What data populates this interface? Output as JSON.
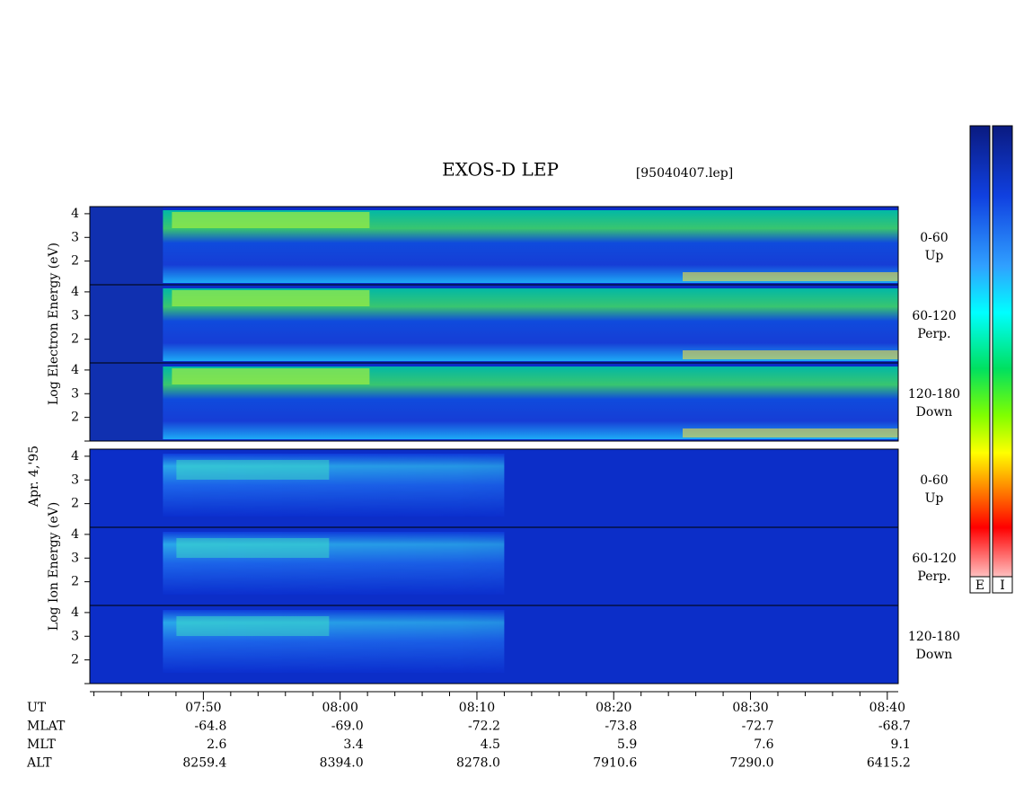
{
  "chart_data": {
    "type": "spectrogram",
    "title": "EXOS-D LEP",
    "file": "[95040407.lep]",
    "date_label": "Apr. 4,'95",
    "xlim": [
      "07:41:42",
      "08:40:48"
    ],
    "xticks": [
      "07:50",
      "08:00",
      "08:10",
      "08:20",
      "08:30",
      "08:40"
    ],
    "xminorticks": [
      "07:42",
      "07:44",
      "07:46",
      "07:48",
      "07:52",
      "07:54",
      "07:56",
      "07:58",
      "08:02",
      "08:04",
      "08:06",
      "08:08",
      "08:12",
      "08:14",
      "08:16",
      "08:18",
      "08:22",
      "08:24",
      "08:26",
      "08:28",
      "08:32",
      "08:34",
      "08:36",
      "08:38"
    ],
    "ylim": [
      1,
      4.3
    ],
    "groups": [
      {
        "species": "electron",
        "ylabel": "Log  Electron  Energy (eV)",
        "panels": [
          {
            "yticks": [
              2,
              3,
              4
            ],
            "angle": "0-60",
            "direction": "Up"
          },
          {
            "yticks": [
              2,
              3,
              4
            ],
            "angle": "60-120",
            "direction": "Perp."
          },
          {
            "yticks": [
              2,
              3,
              4
            ],
            "angle": "120-180",
            "direction": "Down"
          }
        ]
      },
      {
        "species": "ion",
        "ylabel": "Log  Ion  Energy (eV)",
        "panels": [
          {
            "yticks": [
              2,
              3,
              4
            ],
            "angle": "0-60",
            "direction": "Up"
          },
          {
            "yticks": [
              2,
              3,
              4
            ],
            "angle": "60-120",
            "direction": "Perp."
          },
          {
            "yticks": [
              2,
              3,
              4
            ],
            "angle": "120-180",
            "direction": "Down"
          }
        ]
      }
    ],
    "colorbars": [
      "E",
      "I"
    ],
    "orbit_rows": [
      {
        "name": "UT",
        "values": []
      },
      {
        "name": "MLAT",
        "values": [
          "-64.8",
          "-69.0",
          "-72.2",
          "-73.8",
          "-72.7",
          "-68.7"
        ]
      },
      {
        "name": "MLT",
        "values": [
          "2.6",
          "3.4",
          "4.5",
          "5.9",
          "7.6",
          "9.1"
        ]
      },
      {
        "name": "ALT",
        "values": [
          "8259.4",
          "8394.0",
          "8278.0",
          "7910.6",
          "7290.0",
          "6415.2"
        ]
      }
    ]
  }
}
